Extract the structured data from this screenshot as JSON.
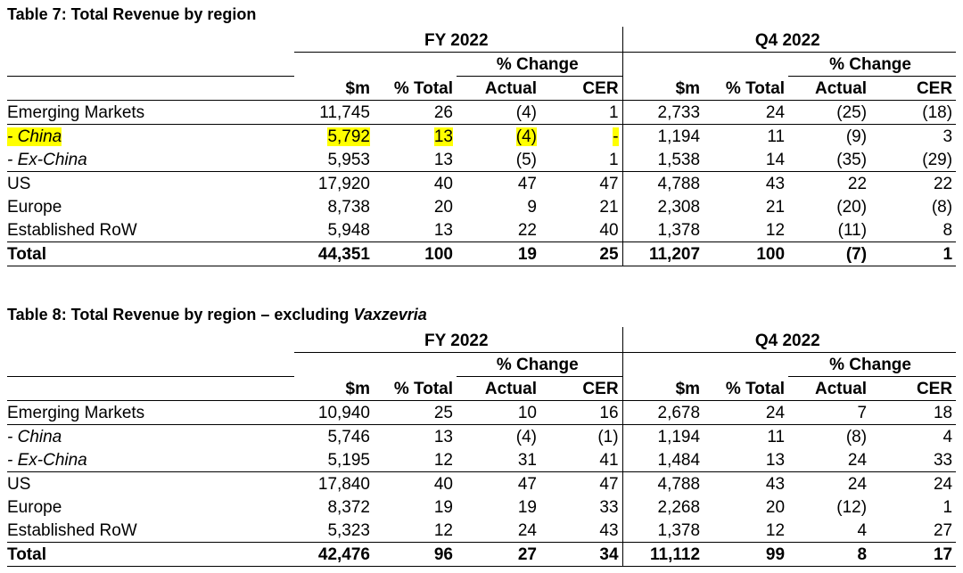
{
  "table7": {
    "title": "Table 7: Total Revenue by region",
    "fy_label": "FY 2022",
    "q4_label": "Q4 2022",
    "pct_change_label": "% Change",
    "col_m": "$m",
    "col_total": "% Total",
    "col_actual": "Actual",
    "col_cer": "CER",
    "rows": [
      {
        "label": "Emerging Markets",
        "fy": [
          "11,745",
          "26",
          "(4)",
          "1"
        ],
        "q4": [
          "2,733",
          "24",
          "(25)",
          "(18)"
        ]
      },
      {
        "label": "- China",
        "fy": [
          "5,792",
          "13",
          "(4)",
          "-"
        ],
        "q4": [
          "1,194",
          "11",
          "(9)",
          "3"
        ]
      },
      {
        "label": "- Ex-China",
        "fy": [
          "5,953",
          "13",
          "(5)",
          "1"
        ],
        "q4": [
          "1,538",
          "14",
          "(35)",
          "(29)"
        ]
      },
      {
        "label": "US",
        "fy": [
          "17,920",
          "40",
          "47",
          "47"
        ],
        "q4": [
          "4,788",
          "43",
          "22",
          "22"
        ]
      },
      {
        "label": "Europe",
        "fy": [
          "8,738",
          "20",
          "9",
          "21"
        ],
        "q4": [
          "2,308",
          "21",
          "(20)",
          "(8)"
        ]
      },
      {
        "label": "Established RoW",
        "fy": [
          "5,948",
          "13",
          "22",
          "40"
        ],
        "q4": [
          "1,378",
          "12",
          "(11)",
          "8"
        ]
      },
      {
        "label": "Total",
        "fy": [
          "44,351",
          "100",
          "19",
          "25"
        ],
        "q4": [
          "11,207",
          "100",
          "(7)",
          "1"
        ]
      }
    ]
  },
  "table8": {
    "title_prefix": "Table 8: Total Revenue by region – excluding ",
    "title_product": "Vaxzevria",
    "fy_label": "FY 2022",
    "q4_label": "Q4 2022",
    "pct_change_label": "% Change",
    "col_m": "$m",
    "col_total": "% Total",
    "col_actual": "Actual",
    "col_cer": "CER",
    "rows": [
      {
        "label": "Emerging Markets",
        "fy": [
          "10,940",
          "25",
          "10",
          "16"
        ],
        "q4": [
          "2,678",
          "24",
          "7",
          "18"
        ]
      },
      {
        "label": "- China",
        "fy": [
          "5,746",
          "13",
          "(4)",
          "(1)"
        ],
        "q4": [
          "1,194",
          "11",
          "(8)",
          "4"
        ]
      },
      {
        "label": "- Ex-China",
        "fy": [
          "5,195",
          "12",
          "31",
          "41"
        ],
        "q4": [
          "1,484",
          "13",
          "24",
          "33"
        ]
      },
      {
        "label": "US",
        "fy": [
          "17,840",
          "40",
          "47",
          "47"
        ],
        "q4": [
          "4,788",
          "43",
          "24",
          "24"
        ]
      },
      {
        "label": "Europe",
        "fy": [
          "8,372",
          "19",
          "19",
          "33"
        ],
        "q4": [
          "2,268",
          "20",
          "(12)",
          "1"
        ]
      },
      {
        "label": "Established RoW",
        "fy": [
          "5,323",
          "12",
          "24",
          "43"
        ],
        "q4": [
          "1,378",
          "12",
          "4",
          "27"
        ]
      },
      {
        "label": "Total",
        "fy": [
          "42,476",
          "96",
          "27",
          "34"
        ],
        "q4": [
          "11,112",
          "99",
          "8",
          "17"
        ]
      }
    ]
  },
  "highlight_color": "#ffff00"
}
